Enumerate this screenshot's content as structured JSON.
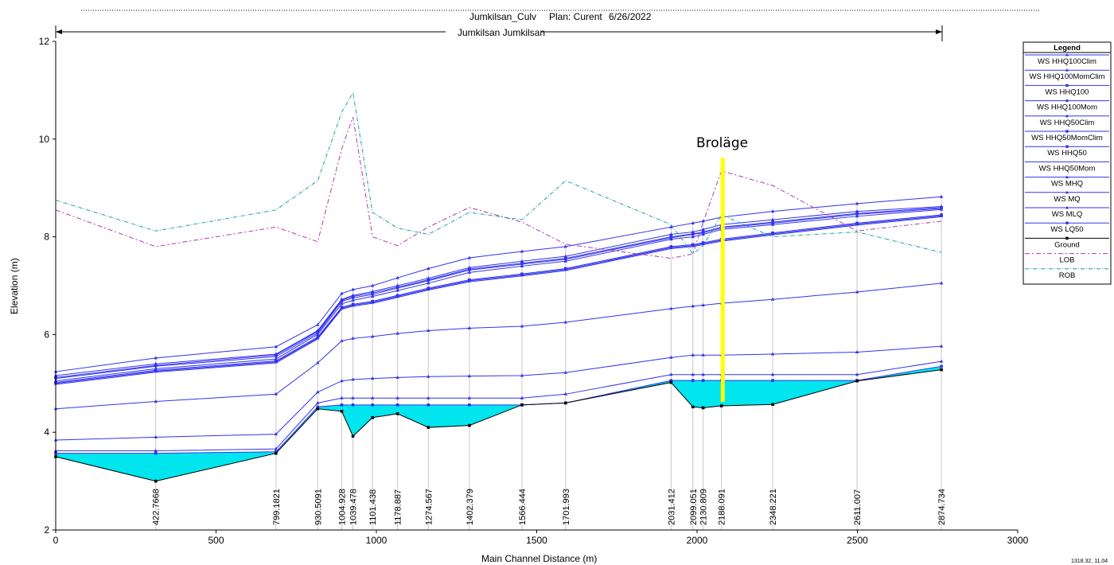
{
  "chart_data": {
    "type": "line",
    "title": "Jumkilsan_Culv",
    "plan_label": "Plan: Curent",
    "date": "6/26/2022",
    "reach_label": "Jumkilsan Jumkilsan",
    "xlabel": "Main Channel Distance (m)",
    "ylabel": "Elevation (m)",
    "xlim": [
      0,
      3000
    ],
    "ylim": [
      2,
      12
    ],
    "x_ticks": [
      "0",
      "500",
      "1000",
      "1500",
      "2000",
      "2500",
      "3000"
    ],
    "y_ticks": [
      "2",
      "4",
      "6",
      "8",
      "10",
      "12"
    ],
    "grid": false,
    "legend_position": "right",
    "legend_title": "Legend",
    "annotation": "Broläge",
    "annotation_x": 2080,
    "corner_note": "1318.32, 11.04",
    "station_labels": [
      {
        "x": 312,
        "label": "422.7668"
      },
      {
        "x": 687,
        "label": "799.1821"
      },
      {
        "x": 817,
        "label": "930.5091"
      },
      {
        "x": 892,
        "label": "1004.928"
      },
      {
        "x": 927,
        "label": "1039.478"
      },
      {
        "x": 988,
        "label": "1101.438"
      },
      {
        "x": 1066,
        "label": "1178.887"
      },
      {
        "x": 1162,
        "label": "1274.567"
      },
      {
        "x": 1290,
        "label": "1402.379"
      },
      {
        "x": 1454,
        "label": "1566.444"
      },
      {
        "x": 1590,
        "label": "1701.993"
      },
      {
        "x": 1919,
        "label": "2031.412"
      },
      {
        "x": 1987,
        "label": "2099.051"
      },
      {
        "x": 2019,
        "label": "2130.809"
      },
      {
        "x": 2076,
        "label": "2188.091"
      },
      {
        "x": 2236,
        "label": "2348.221"
      },
      {
        "x": 2499,
        "label": "2611.007"
      },
      {
        "x": 2762,
        "label": "2874.734"
      }
    ],
    "x_points": [
      0,
      312,
      687,
      817,
      892,
      927,
      988,
      1066,
      1162,
      1290,
      1454,
      1590,
      1919,
      1987,
      2019,
      2076,
      2236,
      2499,
      2762
    ],
    "series": [
      {
        "name": "WS  HHQ100Clim",
        "kind": "ws",
        "marker": "triangle",
        "values": [
          5.24,
          5.52,
          5.75,
          6.2,
          6.84,
          6.92,
          7.0,
          7.16,
          7.35,
          7.57,
          7.7,
          7.8,
          8.2,
          8.28,
          8.32,
          8.4,
          8.52,
          8.68,
          8.82
        ]
      },
      {
        "name": "WS  HHQ100MomClim",
        "kind": "ws",
        "marker": "triangle",
        "values": [
          5.16,
          5.4,
          5.6,
          6.08,
          6.72,
          6.8,
          6.88,
          7.0,
          7.15,
          7.37,
          7.5,
          7.6,
          8.05,
          8.1,
          8.15,
          8.25,
          8.35,
          8.52,
          8.62
        ]
      },
      {
        "name": "WS  HHQ100",
        "kind": "ws",
        "marker": "square",
        "values": [
          5.12,
          5.37,
          5.58,
          6.06,
          6.7,
          6.78,
          6.85,
          6.97,
          7.12,
          7.34,
          7.46,
          7.56,
          8.0,
          8.06,
          8.1,
          8.2,
          8.3,
          8.48,
          8.6
        ]
      },
      {
        "name": "WS  HHQ100Mom",
        "kind": "ws",
        "marker": "circle",
        "values": [
          5.1,
          5.35,
          5.55,
          6.03,
          6.68,
          6.75,
          6.82,
          6.95,
          7.1,
          7.32,
          7.44,
          7.54,
          7.98,
          8.05,
          8.08,
          8.18,
          8.28,
          8.46,
          8.58
        ]
      },
      {
        "name": "WS  HHQ50Clim",
        "kind": "ws",
        "marker": "triangle",
        "values": [
          5.05,
          5.3,
          5.5,
          6.0,
          6.63,
          6.7,
          6.78,
          6.9,
          7.05,
          7.27,
          7.4,
          7.5,
          7.95,
          8.0,
          8.05,
          8.15,
          8.25,
          8.42,
          8.56
        ]
      },
      {
        "name": "WS  HHQ50MomClim",
        "kind": "ws",
        "marker": "square",
        "values": [
          5.02,
          5.27,
          5.46,
          5.95,
          6.56,
          6.62,
          6.68,
          6.8,
          6.95,
          7.12,
          7.24,
          7.35,
          7.8,
          7.84,
          7.88,
          7.95,
          8.08,
          8.28,
          8.45
        ]
      },
      {
        "name": "WS  HHQ50",
        "kind": "ws",
        "marker": "square",
        "values": [
          5.0,
          5.25,
          5.44,
          5.93,
          6.54,
          6.6,
          6.66,
          6.78,
          6.93,
          7.1,
          7.22,
          7.33,
          7.78,
          7.82,
          7.86,
          7.93,
          8.06,
          8.26,
          8.43
        ]
      },
      {
        "name": "WS  HHQ50Mom",
        "kind": "ws",
        "marker": "none",
        "values": [
          4.98,
          5.23,
          5.42,
          5.91,
          6.52,
          6.58,
          6.64,
          6.76,
          6.91,
          7.08,
          7.2,
          7.31,
          7.76,
          7.8,
          7.84,
          7.91,
          8.04,
          8.24,
          8.41
        ]
      },
      {
        "name": "WS  MHQ",
        "kind": "ws",
        "marker": "triangle",
        "values": [
          4.48,
          4.63,
          4.78,
          5.42,
          5.87,
          5.92,
          5.96,
          6.02,
          6.08,
          6.13,
          6.17,
          6.25,
          6.53,
          6.58,
          6.6,
          6.64,
          6.72,
          6.87,
          7.05
        ]
      },
      {
        "name": "WS  MQ",
        "kind": "ws",
        "marker": "triangle",
        "values": [
          3.84,
          3.9,
          3.96,
          4.82,
          5.05,
          5.08,
          5.1,
          5.12,
          5.14,
          5.15,
          5.16,
          5.22,
          5.53,
          5.58,
          5.58,
          5.58,
          5.6,
          5.64,
          5.76
        ]
      },
      {
        "name": "WS  MLQ",
        "kind": "ws",
        "marker": "triangle",
        "values": [
          3.62,
          3.62,
          3.66,
          4.6,
          4.7,
          4.7,
          4.7,
          4.7,
          4.7,
          4.7,
          4.7,
          4.78,
          5.18,
          5.18,
          5.18,
          5.18,
          5.18,
          5.18,
          5.45
        ]
      },
      {
        "name": "WS  LQ50",
        "kind": "ws",
        "marker": "square",
        "values": [
          3.57,
          3.57,
          3.6,
          4.52,
          4.56,
          4.56,
          4.56,
          4.56,
          4.56,
          4.56,
          4.56,
          4.6,
          5.06,
          5.06,
          5.06,
          5.06,
          5.06,
          5.06,
          5.35
        ]
      },
      {
        "name": "Ground",
        "kind": "ground",
        "marker": "square",
        "values": [
          3.5,
          3.0,
          3.57,
          4.48,
          4.43,
          3.92,
          4.3,
          4.38,
          4.1,
          4.14,
          4.56,
          4.6,
          5.02,
          4.52,
          4.5,
          4.54,
          4.57,
          5.05,
          5.28
        ]
      },
      {
        "name": "LOB",
        "kind": "lob",
        "marker": "none",
        "values": [
          8.55,
          7.8,
          8.2,
          7.9,
          9.8,
          10.45,
          8.0,
          7.82,
          8.2,
          8.6,
          8.3,
          7.85,
          7.56,
          7.65,
          8.3,
          9.35,
          9.05,
          8.12,
          8.32
        ]
      },
      {
        "name": "ROB",
        "kind": "rob",
        "marker": "none",
        "values": [
          8.75,
          8.12,
          8.55,
          9.15,
          10.55,
          10.95,
          8.5,
          8.18,
          8.05,
          8.5,
          8.35,
          9.15,
          8.25,
          7.65,
          7.82,
          8.45,
          8.0,
          8.1,
          7.68
        ]
      }
    ],
    "colors": {
      "ws": "#3333ee",
      "ground": "#000000",
      "water_fill": "#00e5ee",
      "lob": "#b03ab0",
      "rob": "#1fa0a0",
      "bridge": "#ffff00",
      "station": "#c8c8c8"
    }
  }
}
